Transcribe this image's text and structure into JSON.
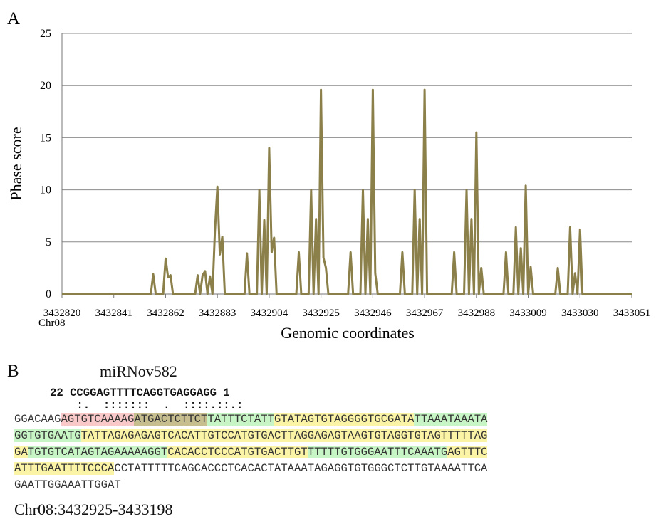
{
  "colors": {
    "line": "#8b7f4a",
    "grid": "#8c8c8c",
    "axis": "#777777"
  },
  "panel_a": {
    "letter": "A"
  },
  "panel_b": {
    "letter": "B",
    "mirna_name": "miRNov582",
    "mirna_seq": "22 CCGGAGTTTTCAGGTGAGGAGG 1",
    "pairing": "    :.  :::::::  .  ::::.::.:",
    "coord_label": "Chr08:3432925-3433198",
    "sequence_lines": [
      [
        {
          "t": "GGACAAG",
          "c": "none"
        },
        {
          "t": "AGTGTCAAAAG",
          "c": "red"
        },
        {
          "t": "ATGACTCTTCT",
          "c": "olive"
        },
        {
          "t": "TATTTCTATT",
          "c": "green"
        },
        {
          "t": "GTATAGTGTAGGGGTGCGATA",
          "c": "yellow"
        },
        {
          "t": "TTAAATAAATA",
          "c": "green"
        }
      ],
      [
        {
          "t": "GGTGTGAATG",
          "c": "green"
        },
        {
          "t": "TATTAGAGAGAGTCACATTGTCCATGTGACTTAGGAGAGTAA",
          "c": "yellow"
        },
        {
          "t": "GTGTAGGTGTAGTTTTTAG",
          "c": "yellow"
        }
      ],
      [
        {
          "t": "GA",
          "c": "yellow"
        },
        {
          "t": "TGTGTCATAGTAGAAAAAGGT",
          "c": "green"
        },
        {
          "t": "CACACCTCCCATGTGACTTGT",
          "c": "yellow"
        },
        {
          "t": "TTTTTGTGGGAATTTCAAATG",
          "c": "green"
        },
        {
          "t": "AGTTTC",
          "c": "yellow"
        }
      ],
      [
        {
          "t": "ATTTGAATTTTCCCA",
          "c": "yellow"
        },
        {
          "t": "CCTATTTTTCAGCACCCTCACACTATAAATAGAGGTGTGGGCTCTTGTAAAATTCA",
          "c": "none"
        }
      ],
      [
        {
          "t": "GAATTGGAAATTGGAT",
          "c": "none"
        }
      ]
    ]
  },
  "chart_data": {
    "type": "line",
    "title": "",
    "xlabel": "Genomic coordinates",
    "ylabel": "Phase score",
    "ylim": [
      0,
      25
    ],
    "yticks": [
      0,
      5,
      10,
      15,
      20,
      25
    ],
    "xlim": [
      3432820,
      3433051
    ],
    "xticks": [
      3432820,
      3432841,
      3432862,
      3432883,
      3432904,
      3432925,
      3432946,
      3432967,
      3432988,
      3433009,
      3433030,
      3433051
    ],
    "xtick_labels": [
      "3432820",
      "3432841",
      "3432862",
      "3432883",
      "3432904",
      "3432925",
      "3432946",
      "3432967",
      "3432988",
      "3433009",
      "3433030",
      "3433051"
    ],
    "x_sublabel": "Chr08",
    "grid": true,
    "series": [
      {
        "values": [
          [
            3432820,
            0
          ],
          [
            3432856,
            0
          ],
          [
            3432857,
            1.9
          ],
          [
            3432858,
            0
          ],
          [
            3432861,
            0
          ],
          [
            3432862,
            3.4
          ],
          [
            3432863,
            1.6
          ],
          [
            3432864,
            1.8
          ],
          [
            3432865,
            0
          ],
          [
            3432874,
            0
          ],
          [
            3432875,
            1.8
          ],
          [
            3432876,
            0
          ],
          [
            3432877,
            1.8
          ],
          [
            3432878,
            2.2
          ],
          [
            3432879,
            0
          ],
          [
            3432880,
            1.7
          ],
          [
            3432881,
            0
          ],
          [
            3432882,
            6
          ],
          [
            3432883,
            10.3
          ],
          [
            3432884,
            3.8
          ],
          [
            3432885,
            5.5
          ],
          [
            3432886,
            0
          ],
          [
            3432894,
            0
          ],
          [
            3432895,
            3.9
          ],
          [
            3432896,
            0
          ],
          [
            3432899,
            0
          ],
          [
            3432900,
            10
          ],
          [
            3432901,
            0
          ],
          [
            3432902,
            7.1
          ],
          [
            3432903,
            0
          ],
          [
            3432904,
            14
          ],
          [
            3432905,
            4
          ],
          [
            3432906,
            5.4
          ],
          [
            3432907,
            0
          ],
          [
            3432915,
            0
          ],
          [
            3432916,
            4
          ],
          [
            3432917,
            0
          ],
          [
            3432920,
            0
          ],
          [
            3432921,
            10
          ],
          [
            3432922,
            0
          ],
          [
            3432923,
            7.2
          ],
          [
            3432924,
            0
          ],
          [
            3432925,
            19.6
          ],
          [
            3432926,
            3.5
          ],
          [
            3432927,
            2.5
          ],
          [
            3432928,
            0
          ],
          [
            3432936,
            0
          ],
          [
            3432937,
            4
          ],
          [
            3432938,
            0
          ],
          [
            3432941,
            0
          ],
          [
            3432942,
            10
          ],
          [
            3432943,
            0
          ],
          [
            3432944,
            7.2
          ],
          [
            3432945,
            0
          ],
          [
            3432946,
            19.6
          ],
          [
            3432947,
            2
          ],
          [
            3432948,
            0
          ],
          [
            3432957,
            0
          ],
          [
            3432958,
            4
          ],
          [
            3432959,
            0
          ],
          [
            3432962,
            0
          ],
          [
            3432963,
            10
          ],
          [
            3432964,
            0
          ],
          [
            3432965,
            7.2
          ],
          [
            3432966,
            0
          ],
          [
            3432967,
            19.6
          ],
          [
            3432968,
            0
          ],
          [
            3432978,
            0
          ],
          [
            3432979,
            4
          ],
          [
            3432980,
            0
          ],
          [
            3432983,
            0
          ],
          [
            3432984,
            10
          ],
          [
            3432985,
            0
          ],
          [
            3432986,
            7.2
          ],
          [
            3432987,
            0
          ],
          [
            3432988,
            15.5
          ],
          [
            3432989,
            0
          ],
          [
            3432990,
            2.5
          ],
          [
            3432991,
            0
          ],
          [
            3432999,
            0
          ],
          [
            3433000,
            4
          ],
          [
            3433001,
            0
          ],
          [
            3433003,
            0
          ],
          [
            3433004,
            6.4
          ],
          [
            3433005,
            0
          ],
          [
            3433006,
            4.4
          ],
          [
            3433007,
            0
          ],
          [
            3433008,
            10.4
          ],
          [
            3433009,
            0
          ],
          [
            3433010,
            2.6
          ],
          [
            3433011,
            0
          ],
          [
            3433020,
            0
          ],
          [
            3433021,
            2.5
          ],
          [
            3433022,
            0
          ],
          [
            3433025,
            0
          ],
          [
            3433026,
            6.4
          ],
          [
            3433027,
            0
          ],
          [
            3433028,
            2
          ],
          [
            3433029,
            0
          ],
          [
            3433030,
            6.2
          ],
          [
            3433031,
            0
          ],
          [
            3433051,
            0
          ]
        ]
      }
    ]
  }
}
